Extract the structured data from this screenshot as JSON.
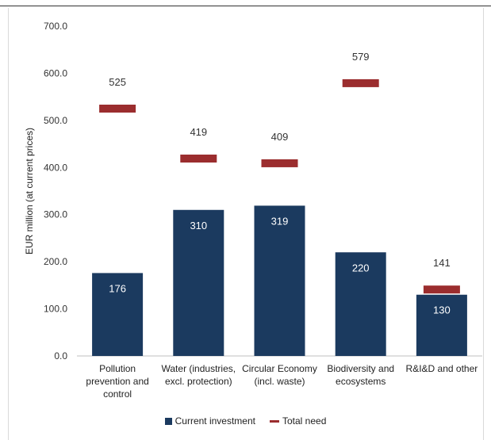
{
  "chart_data": {
    "type": "bar",
    "categories": [
      [
        "Pollution",
        "prevention and",
        "control"
      ],
      [
        "Water (industries,",
        "excl. protection)"
      ],
      [
        "Circular Economy",
        "(incl. waste)"
      ],
      [
        "Biodiversity and",
        "ecosystems"
      ],
      [
        "R&I&D and other"
      ]
    ],
    "series": [
      {
        "name": "Current investment",
        "kind": "bar",
        "color": "#1b3a5f",
        "values": [
          176,
          310,
          319,
          220,
          130
        ]
      },
      {
        "name": "Total need",
        "kind": "marker",
        "color": "#9b2d2e",
        "values": [
          525,
          419,
          409,
          579,
          141
        ]
      }
    ],
    "ylabel": "EUR million (at current prices)",
    "ylim": [
      0,
      700
    ],
    "yticks": [
      "0.0",
      "100.0",
      "200.0",
      "300.0",
      "400.0",
      "500.0",
      "600.0",
      "700.0"
    ],
    "grid": false,
    "legend_position": "bottom"
  },
  "legend": {
    "current": "Current investment",
    "need": "Total need"
  }
}
